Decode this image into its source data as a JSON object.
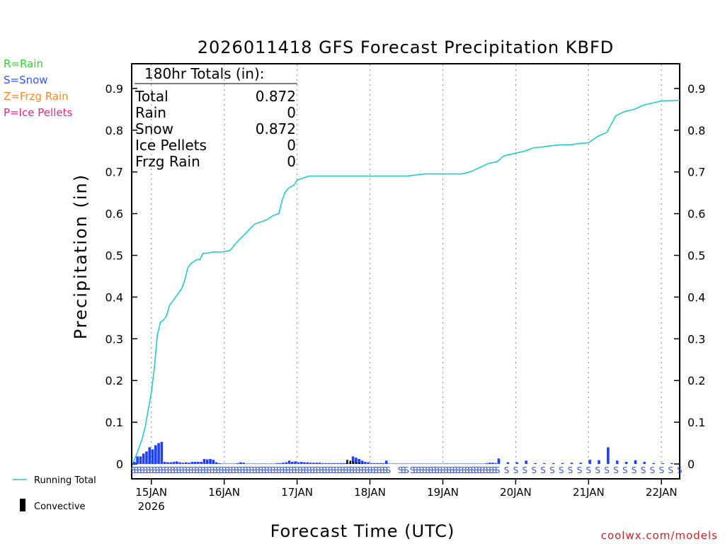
{
  "chart_data": {
    "type": "line",
    "title": "2026011418 GFS Forecast Precipitation KBFD",
    "xlabel": "Forecast Time (UTC)",
    "ylabel": "Precipitation (in)",
    "ylim": [
      0,
      0.95
    ],
    "yticks": [
      "0",
      "0.1",
      "0.2",
      "0.3",
      "0.4",
      "0.5",
      "0.6",
      "0.7",
      "0.8",
      "0.9"
    ],
    "ytick_values": [
      0,
      0.1,
      0.2,
      0.3,
      0.4,
      0.5,
      0.6,
      0.7,
      0.8,
      0.9
    ],
    "xlim_hours": [
      0,
      180
    ],
    "xticks": [
      {
        "label": "15JAN",
        "hour": 6,
        "sub": "2026"
      },
      {
        "label": "16JAN",
        "hour": 30
      },
      {
        "label": "17JAN",
        "hour": 54
      },
      {
        "label": "18JAN",
        "hour": 78
      },
      {
        "label": "19JAN",
        "hour": 102
      },
      {
        "label": "20JAN",
        "hour": 126
      },
      {
        "label": "21JAN",
        "hour": 150
      },
      {
        "label": "22JAN",
        "hour": 174
      }
    ],
    "grid": "vertical dotted at day boundaries",
    "legend_left": [
      {
        "text": "R=Rain",
        "color": "#22dd22"
      },
      {
        "text": "S=Snow",
        "color": "#3355ff"
      },
      {
        "text": "Z=Frzg Rain",
        "color": "#ff8822"
      },
      {
        "text": "P=Ice Pellets",
        "color": "#ee2288"
      }
    ],
    "legend_bottom": [
      {
        "text": "Running Total",
        "color": "#22cccc"
      },
      {
        "text": "Convective",
        "color": "#000000"
      }
    ],
    "totals_box": {
      "header": "180hr Totals (in):",
      "rows": [
        {
          "label": "Total",
          "value": "0.872"
        },
        {
          "label": "Rain",
          "value": "0"
        },
        {
          "label": "Snow",
          "value": "0.872"
        },
        {
          "label": "Ice Pellets",
          "value": "0"
        },
        {
          "label": "Frzg Rain",
          "value": "0"
        }
      ]
    },
    "series": [
      {
        "name": "Running Total",
        "color": "#22cccc",
        "x_hours": [
          0,
          1,
          2,
          3,
          4,
          5,
          6,
          7,
          8,
          9,
          10,
          11,
          12,
          13,
          14,
          15,
          16,
          17,
          18,
          19,
          20,
          21,
          22,
          23,
          24,
          25,
          26,
          27,
          28,
          29,
          30,
          32,
          34,
          36,
          38,
          40,
          42,
          44,
          46,
          48,
          49,
          50,
          51,
          52,
          53,
          54,
          55,
          56,
          57,
          58,
          59,
          60,
          61,
          62,
          63,
          64,
          65,
          66,
          67,
          68,
          69,
          70,
          71,
          72,
          73,
          74,
          75,
          76,
          77,
          78,
          79,
          80,
          81,
          82,
          84,
          90,
          96,
          99,
          102,
          105,
          108,
          111,
          114,
          117,
          120,
          122,
          123,
          126,
          129,
          132,
          135,
          138,
          141,
          144,
          147,
          150,
          153,
          156,
          159,
          162,
          165,
          168,
          171,
          174,
          177,
          180
        ],
        "y": [
          0.005,
          0.02,
          0.04,
          0.06,
          0.09,
          0.13,
          0.17,
          0.23,
          0.31,
          0.34,
          0.345,
          0.355,
          0.38,
          0.39,
          0.4,
          0.41,
          0.42,
          0.44,
          0.47,
          0.48,
          0.485,
          0.49,
          0.49,
          0.505,
          0.505,
          0.506,
          0.508,
          0.508,
          0.508,
          0.508,
          0.509,
          0.512,
          0.53,
          0.545,
          0.56,
          0.575,
          0.58,
          0.585,
          0.595,
          0.6,
          0.63,
          0.65,
          0.66,
          0.665,
          0.668,
          0.68,
          0.683,
          0.685,
          0.688,
          0.69,
          0.69,
          0.69,
          0.69,
          0.69,
          0.69,
          0.69,
          0.69,
          0.69,
          0.69,
          0.69,
          0.69,
          0.69,
          0.69,
          0.69,
          0.69,
          0.69,
          0.69,
          0.69,
          0.69,
          0.69,
          0.69,
          0.69,
          0.69,
          0.69,
          0.69,
          0.69,
          0.695,
          0.695,
          0.695,
          0.695,
          0.695,
          0.7,
          0.71,
          0.72,
          0.725,
          0.738,
          0.74,
          0.745,
          0.75,
          0.758,
          0.76,
          0.763,
          0.765,
          0.765,
          0.768,
          0.77,
          0.785,
          0.795,
          0.835,
          0.845,
          0.85,
          0.86,
          0.865,
          0.87,
          0.871,
          0.872
        ]
      },
      {
        "name": "Snow bars",
        "color": "#1f3fff",
        "x_hours": [
          0,
          1,
          2,
          3,
          4,
          5,
          6,
          7,
          8,
          9,
          10,
          11,
          12,
          13,
          14,
          15,
          16,
          17,
          18,
          19,
          20,
          21,
          22,
          23,
          24,
          25,
          26,
          27,
          28,
          29,
          30,
          31,
          32,
          33,
          34,
          35,
          36,
          37,
          38,
          39,
          40,
          41,
          42,
          43,
          44,
          45,
          46,
          47,
          48,
          49,
          50,
          51,
          52,
          53,
          54,
          55,
          56,
          57,
          58,
          59,
          60,
          61,
          62,
          63,
          64,
          65,
          66,
          67,
          68,
          69,
          70,
          71,
          72,
          73,
          74,
          75,
          76,
          77,
          78,
          79,
          80,
          81,
          82,
          83,
          84,
          85,
          86,
          87,
          88,
          89,
          90,
          91,
          92,
          93,
          94,
          95,
          96,
          97,
          98,
          99,
          100,
          101,
          102,
          103,
          104,
          105,
          106,
          107,
          108,
          109,
          110,
          111,
          112,
          113,
          114,
          115,
          116,
          117,
          118,
          119,
          120,
          123,
          126,
          129,
          132,
          135,
          138,
          141,
          144,
          147,
          150,
          153,
          156,
          159,
          162,
          165,
          168,
          171,
          174,
          177
        ],
        "values": [
          0.005,
          0.018,
          0.018,
          0.025,
          0.03,
          0.04,
          0.035,
          0.045,
          0.05,
          0.053,
          0.005,
          0.004,
          0.004,
          0.005,
          0.006,
          0.004,
          0.003,
          0.004,
          0.003,
          0.005,
          0.005,
          0.005,
          0.005,
          0.012,
          0.011,
          0.012,
          0.01,
          0.004,
          0.002,
          0.001,
          0.001,
          0.001,
          0.001,
          0.001,
          0.002,
          0.004,
          0.003,
          0.001,
          0.001,
          0.001,
          0.001,
          0.001,
          0.001,
          0.001,
          0.001,
          0.001,
          0.001,
          0.002,
          0.002,
          0.003,
          0.004,
          0.008,
          0.005,
          0.006,
          0.004,
          0.005,
          0.004,
          0.004,
          0.003,
          0.003,
          0.003,
          0.003,
          0.002,
          0.002,
          0.002,
          0.002,
          0.002,
          0.002,
          0.002,
          0.002,
          0.003,
          0.002,
          0.018,
          0.015,
          0.012,
          0.008,
          0.005,
          0.004,
          0.002,
          0.002,
          0.002,
          0.002,
          0.002,
          0.008,
          0.001,
          0.001,
          0.001,
          0.001,
          0.001,
          0.001,
          0.001,
          0.001,
          0.001,
          0.001,
          0.001,
          0.001,
          0.001,
          0.001,
          0.001,
          0.001,
          0.001,
          0.001,
          0.001,
          0.001,
          0.001,
          0.001,
          0.001,
          0.001,
          0.001,
          0.001,
          0.001,
          0.001,
          0.001,
          0.001,
          0.001,
          0.001,
          0.002,
          0.003,
          0.003,
          0.002,
          0.013,
          0.004,
          0.004,
          0.008,
          0.002,
          0.002,
          0.002,
          0.002,
          0.003,
          0.003,
          0.01,
          0.009,
          0.04,
          0.008,
          0.005,
          0.009,
          0.005,
          0.002,
          0.002,
          0.002
        ]
      },
      {
        "name": "Convective bars",
        "color": "#000000",
        "x_hours": [
          70,
          71,
          72,
          73,
          74,
          75
        ],
        "values": [
          0.01,
          0.008,
          0.006,
          0.004,
          0.003,
          0.002
        ]
      }
    ],
    "ptype_markers": {
      "letter": "S",
      "color": "#3355ff",
      "x_hours": [
        0,
        1,
        2,
        3,
        4,
        5,
        6,
        7,
        8,
        9,
        10,
        11,
        12,
        13,
        14,
        15,
        16,
        17,
        18,
        19,
        20,
        21,
        22,
        23,
        24,
        25,
        26,
        27,
        28,
        29,
        30,
        31,
        32,
        33,
        34,
        35,
        36,
        37,
        38,
        39,
        40,
        41,
        42,
        43,
        44,
        45,
        46,
        47,
        48,
        49,
        50,
        51,
        52,
        53,
        54,
        55,
        56,
        57,
        58,
        59,
        60,
        61,
        62,
        63,
        64,
        65,
        66,
        67,
        68,
        69,
        70,
        71,
        72,
        73,
        74,
        75,
        76,
        77,
        78,
        79,
        80,
        81,
        82,
        83,
        84,
        88,
        89,
        90,
        92,
        93,
        94,
        95,
        96,
        97,
        98,
        99,
        100,
        101,
        102,
        103,
        104,
        105,
        106,
        107,
        108,
        109,
        110,
        111,
        112,
        113,
        114,
        115,
        116,
        117,
        118,
        119,
        120,
        123,
        126,
        129,
        132,
        135,
        138,
        141,
        144,
        147,
        150,
        153,
        156,
        159,
        162,
        165,
        168,
        171,
        174,
        177,
        180
      ]
    },
    "credit": "coolwx.com/models"
  }
}
